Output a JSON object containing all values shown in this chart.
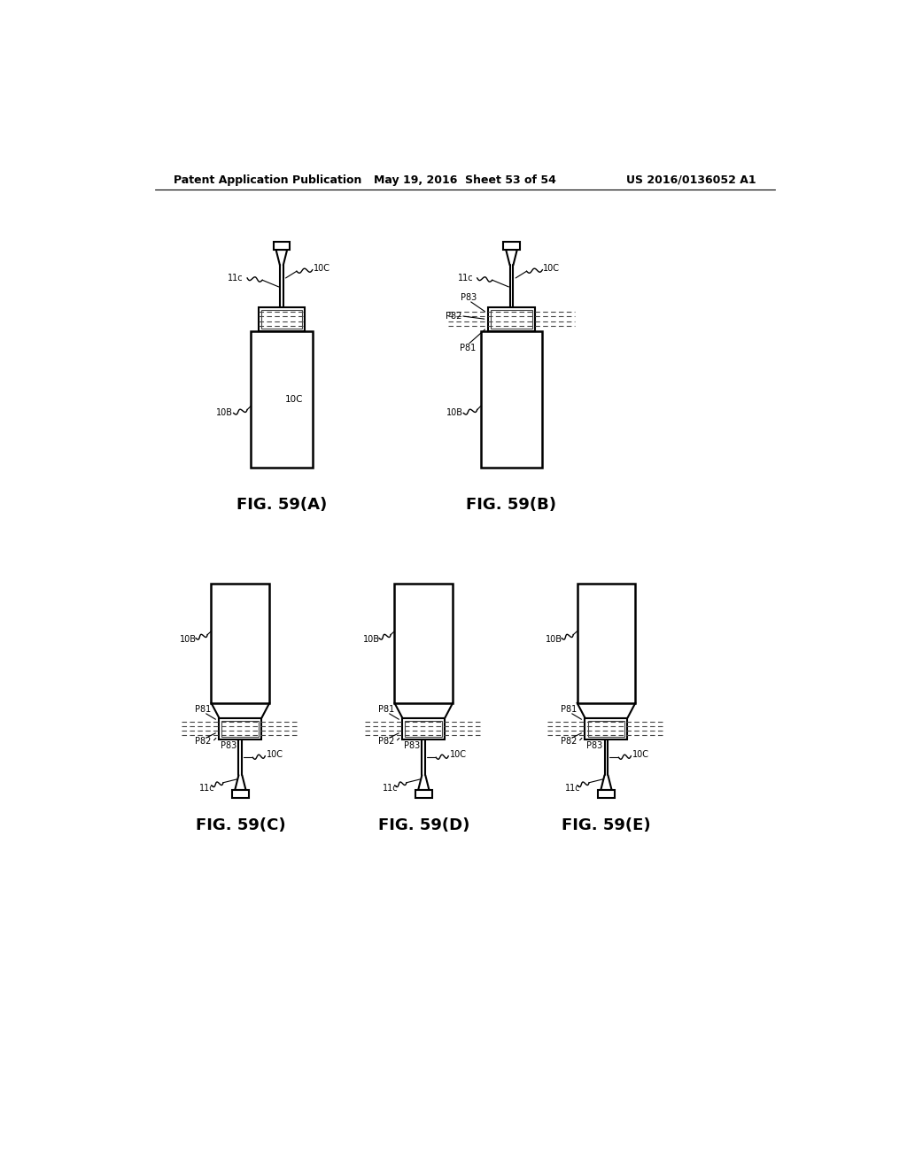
{
  "header_left": "Patent Application Publication",
  "header_center": "May 19, 2016  Sheet 53 of 54",
  "header_right": "US 2016/0136052 A1",
  "background_color": "#ffffff",
  "line_color": "#000000"
}
